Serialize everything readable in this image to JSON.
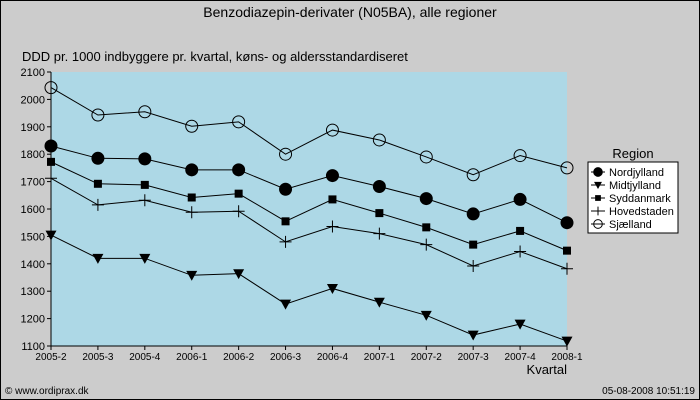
{
  "page": {
    "title": "Benzodiazepin-derivater (N05BA), alle regioner",
    "subtitle": "DDD pr. 1000 indbyggere pr. kvartal, køns- og aldersstandardiseret",
    "copyright": "© www.ordiprax.dk",
    "timestamp": "05-08-2008 10:51:19"
  },
  "chart_data": {
    "type": "line",
    "title": "Benzodiazepin-derivater (N05BA), alle regioner",
    "subtitle": "DDD pr. 1000 indbyggere pr. kvartal, køns- og aldersstandardiseret",
    "xlabel": "Kvartal",
    "ylabel": "",
    "ylim": [
      1100,
      2100
    ],
    "yticks": [
      1100,
      1200,
      1300,
      1400,
      1500,
      1600,
      1700,
      1800,
      1900,
      2000,
      2100
    ],
    "grid": false,
    "legend_title": "Region",
    "legend_position": "right",
    "plot_background": "#add8e6",
    "categories": [
      "2005-2",
      "2005-3",
      "2005-4",
      "2006-1",
      "2006-2",
      "2006-3",
      "2006-4",
      "2007-1",
      "2007-2",
      "2007-3",
      "2007-4",
      "2008-1"
    ],
    "series": [
      {
        "name": "Nordjylland",
        "marker": "filled-circle",
        "values": [
          1830,
          1785,
          1783,
          1743,
          1743,
          1672,
          1722,
          1682,
          1638,
          1582,
          1635,
          1550
        ]
      },
      {
        "name": "Midtjylland",
        "marker": "filled-triangle-down",
        "values": [
          1505,
          1420,
          1420,
          1358,
          1364,
          1253,
          1310,
          1260,
          1212,
          1140,
          1180,
          1118
        ]
      },
      {
        "name": "Syddanmark",
        "marker": "filled-square",
        "values": [
          1772,
          1692,
          1688,
          1642,
          1656,
          1555,
          1635,
          1585,
          1533,
          1470,
          1520,
          1448
        ]
      },
      {
        "name": "Hovedstaden",
        "marker": "plus",
        "values": [
          1712,
          1615,
          1632,
          1588,
          1592,
          1480,
          1536,
          1510,
          1470,
          1392,
          1445,
          1382
        ]
      },
      {
        "name": "Sjælland",
        "marker": "open-circle",
        "values": [
          2043,
          1943,
          1955,
          1902,
          1918,
          1800,
          1888,
          1852,
          1790,
          1725,
          1795,
          1750
        ]
      }
    ]
  }
}
